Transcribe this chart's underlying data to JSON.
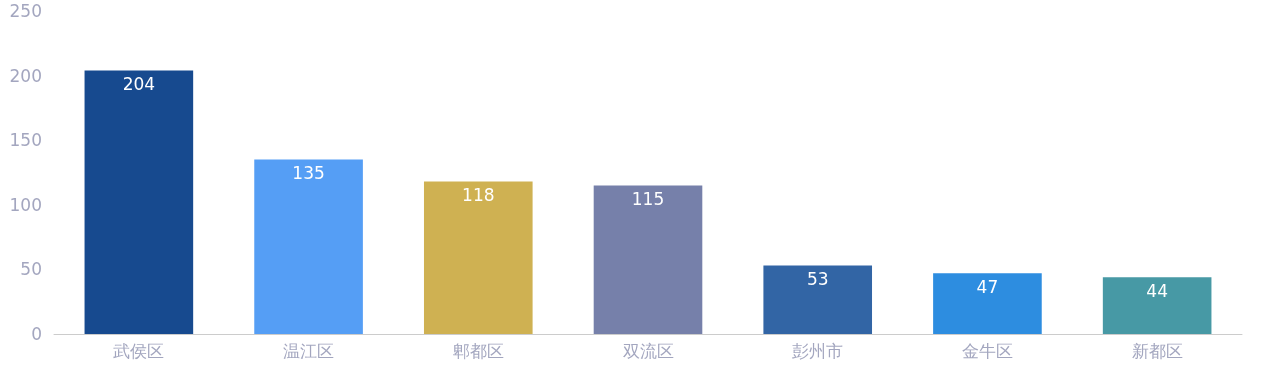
{
  "chart_data": {
    "type": "bar",
    "categories": [
      "武侯区",
      "温江区",
      "郫都区",
      "双流区",
      "彭州市",
      "金牛区",
      "新都区"
    ],
    "values": [
      204,
      135,
      118,
      115,
      53,
      47,
      44
    ],
    "colors": [
      "#174a8f",
      "#559ef5",
      "#cfb152",
      "#7680aa",
      "#3265a5",
      "#2d8de0",
      "#4799a5"
    ],
    "ylim": [
      0,
      250
    ],
    "yticks": [
      0,
      50,
      100,
      150,
      200,
      250
    ],
    "grid": false,
    "data_labels": true
  }
}
